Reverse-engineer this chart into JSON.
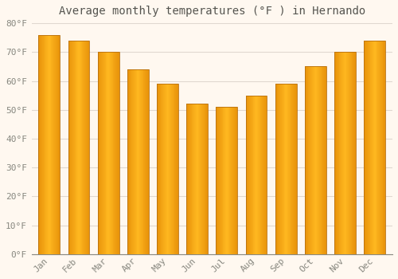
{
  "title": "Average monthly temperatures (°F ) in Hernando",
  "months": [
    "Jan",
    "Feb",
    "Mar",
    "Apr",
    "May",
    "Jun",
    "Jul",
    "Aug",
    "Sep",
    "Oct",
    "Nov",
    "Dec"
  ],
  "values": [
    76,
    74,
    70,
    64,
    59,
    52,
    51,
    55,
    59,
    65,
    70,
    74
  ],
  "bar_color_left": "#E8930A",
  "bar_color_center": "#FFB820",
  "bar_color_right": "#E8930A",
  "bar_edge_color": "#B87010",
  "ylim": [
    0,
    80
  ],
  "yticks": [
    0,
    10,
    20,
    30,
    40,
    50,
    60,
    70,
    80
  ],
  "ytick_labels": [
    "0°F",
    "10°F",
    "20°F",
    "30°F",
    "40°F",
    "50°F",
    "60°F",
    "70°F",
    "80°F"
  ],
  "background_color": "#FFF8F0",
  "plot_bg_color": "#FFF8F0",
  "grid_color": "#E0D8D0",
  "title_fontsize": 10,
  "tick_fontsize": 8,
  "tick_color": "#888880",
  "title_color": "#555550"
}
